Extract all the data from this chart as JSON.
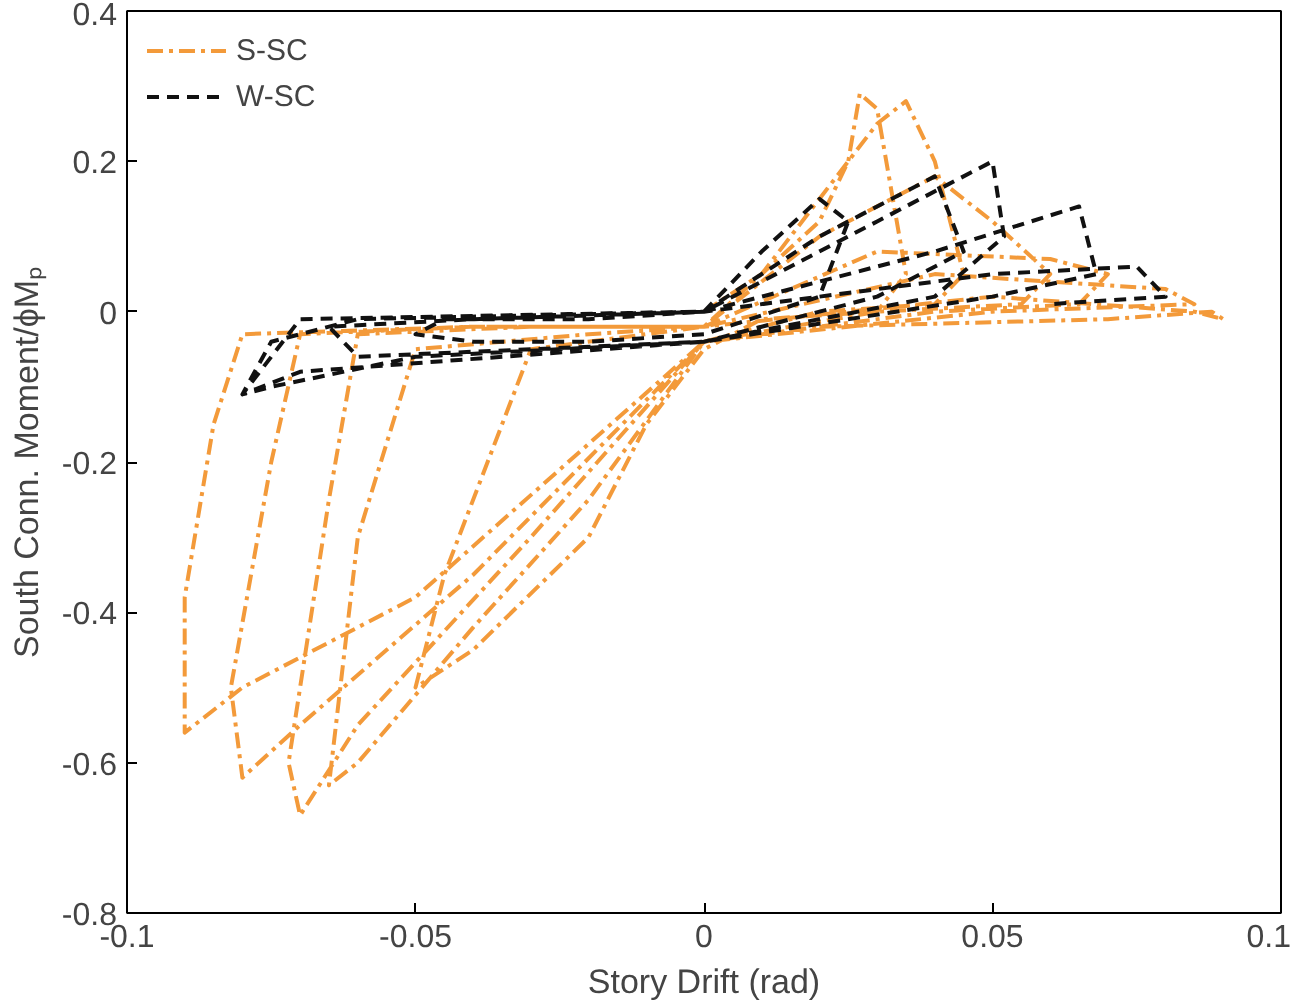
{
  "chart_data": {
    "type": "line",
    "xlabel": "Story Drift (rad)",
    "ylabel": "South Conn. Moment/ϕMₚ",
    "xlim": [
      -0.1,
      0.1
    ],
    "xticks": [
      -0.1,
      -0.05,
      0,
      0.05,
      0.1
    ],
    "ylim": [
      -0.8,
      0.4
    ],
    "yticks": [
      -0.8,
      -0.6,
      -0.4,
      -0.2,
      0,
      0.2,
      0.4
    ],
    "grid": false,
    "legend": "top left",
    "marker": "none",
    "series": [
      {
        "name": "S-SC",
        "color": "#f39a3a",
        "line_style": "dashdot",
        "x": [
          0,
          0.01,
          0.02,
          0.025,
          0.027,
          0.03,
          0.035,
          0.03,
          0.01,
          0,
          -0.01,
          -0.02,
          -0.04,
          -0.05,
          -0.045,
          -0.03,
          -0.01,
          0,
          0.01,
          0.02,
          0.03,
          0.035,
          0.04,
          0.045,
          0.04,
          0.02,
          0,
          -0.02,
          -0.04,
          -0.06,
          -0.065,
          -0.06,
          -0.05,
          -0.02,
          0,
          0.02,
          0.04,
          0.05,
          0.06,
          0.055,
          0.03,
          0,
          -0.03,
          -0.06,
          -0.07,
          -0.072,
          -0.065,
          -0.06,
          -0.03,
          0,
          0.03,
          0.06,
          0.07,
          0.065,
          0.04,
          0,
          -0.04,
          -0.07,
          -0.08,
          -0.082,
          -0.075,
          -0.07,
          -0.04,
          0,
          0.04,
          0.08,
          0.085,
          0.05,
          0,
          -0.05,
          -0.08,
          -0.09,
          -0.09,
          -0.085,
          -0.08,
          -0.04,
          0,
          0.05,
          0.085,
          0.09,
          0.088,
          0.07,
          0.02
        ],
        "values": [
          0,
          0.05,
          0.12,
          0.2,
          0.29,
          0.27,
          0.05,
          0.0,
          -0.01,
          -0.05,
          -0.15,
          -0.3,
          -0.45,
          -0.5,
          -0.35,
          -0.05,
          -0.03,
          -0.02,
          0.05,
          0.15,
          0.25,
          0.28,
          0.2,
          0.05,
          0.01,
          0,
          -0.04,
          -0.25,
          -0.42,
          -0.6,
          -0.63,
          -0.3,
          -0.05,
          -0.03,
          -0.02,
          0.1,
          0.18,
          0.12,
          0.05,
          0.01,
          0,
          -0.04,
          -0.3,
          -0.55,
          -0.67,
          -0.6,
          -0.25,
          -0.03,
          -0.02,
          -0.02,
          0.08,
          0.07,
          0.05,
          0.01,
          0,
          -0.04,
          -0.35,
          -0.55,
          -0.62,
          -0.5,
          -0.2,
          -0.03,
          -0.02,
          -0.02,
          0.05,
          0.03,
          0.01,
          0,
          -0.04,
          -0.38,
          -0.5,
          -0.56,
          -0.38,
          -0.15,
          -0.03,
          -0.02,
          -0.02,
          0.02,
          0.0,
          -0.01,
          0.0,
          -0.01,
          -0.02
        ]
      },
      {
        "name": "W-SC",
        "color": "#111111",
        "line_style": "dashed",
        "x": [
          0,
          0.01,
          0.02,
          0.025,
          0.02,
          0,
          -0.02,
          -0.04,
          -0.05,
          -0.045,
          -0.02,
          0,
          0.02,
          0.04,
          0.045,
          0.03,
          0,
          -0.03,
          -0.06,
          -0.065,
          -0.04,
          0,
          0.03,
          0.05,
          0.052,
          0.04,
          0,
          -0.05,
          -0.075,
          -0.08,
          -0.075,
          -0.06,
          0,
          0.04,
          0.065,
          0.068,
          0.05,
          0,
          -0.07,
          -0.08,
          -0.07,
          0,
          0.05,
          0.075,
          0.08,
          0.06
        ],
        "values": [
          0,
          0.08,
          0.15,
          0.12,
          0.02,
          -0.03,
          -0.04,
          -0.04,
          -0.03,
          -0.01,
          -0.01,
          0,
          0.1,
          0.18,
          0.08,
          0.02,
          -0.04,
          -0.05,
          -0.06,
          -0.02,
          -0.01,
          0,
          0.12,
          0.2,
          0.1,
          0.02,
          -0.04,
          -0.06,
          -0.1,
          -0.11,
          -0.04,
          -0.01,
          0,
          0.08,
          0.14,
          0.05,
          0.02,
          -0.04,
          -0.08,
          -0.11,
          -0.01,
          0,
          0.05,
          0.06,
          0.02,
          0.01
        ]
      }
    ]
  }
}
